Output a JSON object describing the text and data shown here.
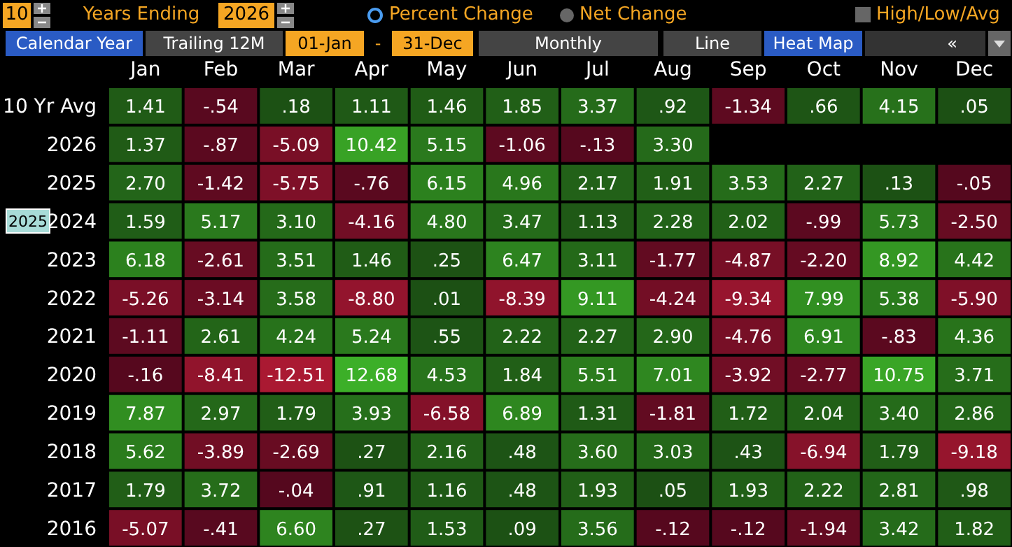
{
  "chart_data": {
    "type": "heatmap",
    "categories": [
      "Jan",
      "Feb",
      "Mar",
      "Apr",
      "May",
      "Jun",
      "Jul",
      "Aug",
      "Sep",
      "Oct",
      "Nov",
      "Dec"
    ],
    "y_categories": [
      "10 Yr Avg",
      "2026",
      "2025",
      "2024",
      "2023",
      "2022",
      "2021",
      "2020",
      "2019",
      "2018",
      "2017",
      "2016"
    ],
    "cells": [
      [
        1.41,
        -0.54,
        0.18,
        1.11,
        1.46,
        1.85,
        3.37,
        0.92,
        -1.34,
        0.66,
        4.15,
        0.05
      ],
      [
        1.37,
        -0.87,
        -5.09,
        10.42,
        5.15,
        -1.06,
        -0.13,
        3.3,
        null,
        null,
        null,
        null
      ],
      [
        2.7,
        -1.42,
        -5.75,
        -0.76,
        6.15,
        4.96,
        2.17,
        1.91,
        3.53,
        2.27,
        0.13,
        -0.05
      ],
      [
        1.59,
        5.17,
        3.1,
        -4.16,
        4.8,
        3.47,
        1.13,
        2.28,
        2.02,
        -0.99,
        5.73,
        -2.5
      ],
      [
        6.18,
        -2.61,
        3.51,
        1.46,
        0.25,
        6.47,
        3.11,
        -1.77,
        -4.87,
        -2.2,
        8.92,
        4.42
      ],
      [
        -5.26,
        -3.14,
        3.58,
        -8.8,
        0.01,
        -8.39,
        9.11,
        -4.24,
        -9.34,
        7.99,
        5.38,
        -5.9
      ],
      [
        -1.11,
        2.61,
        4.24,
        5.24,
        0.55,
        2.22,
        2.27,
        2.9,
        -4.76,
        6.91,
        -0.83,
        4.36
      ],
      [
        -0.16,
        -8.41,
        -12.51,
        12.68,
        4.53,
        1.84,
        5.51,
        7.01,
        -3.92,
        -2.77,
        10.75,
        3.71
      ],
      [
        7.87,
        2.97,
        1.79,
        3.93,
        -6.58,
        6.89,
        1.31,
        -1.81,
        1.72,
        2.04,
        3.4,
        2.86
      ],
      [
        5.62,
        -3.89,
        -2.69,
        0.27,
        2.16,
        0.48,
        3.6,
        3.03,
        0.43,
        -6.94,
        1.79,
        -9.18
      ],
      [
        1.79,
        3.72,
        -0.04,
        0.91,
        1.16,
        0.48,
        1.93,
        0.05,
        1.93,
        2.22,
        2.81,
        0.98
      ],
      [
        -5.07,
        -0.41,
        6.6,
        0.27,
        1.53,
        0.09,
        3.56,
        -0.12,
        -0.12,
        -1.94,
        3.42,
        1.82
      ]
    ],
    "cell_labels": [
      [
        "1.41",
        "-.54",
        ".18",
        "1.11",
        "1.46",
        "1.85",
        "3.37",
        ".92",
        "-1.34",
        ".66",
        "4.15",
        ".05"
      ],
      [
        "1.37",
        "-.87",
        "-5.09",
        "10.42",
        "5.15",
        "-1.06",
        "-.13",
        "3.30",
        null,
        null,
        null,
        null
      ],
      [
        "2.70",
        "-1.42",
        "-5.75",
        "-.76",
        "6.15",
        "4.96",
        "2.17",
        "1.91",
        "3.53",
        "2.27",
        ".13",
        "-.05"
      ],
      [
        "1.59",
        "5.17",
        "3.10",
        "-4.16",
        "4.80",
        "3.47",
        "1.13",
        "2.28",
        "2.02",
        "-.99",
        "5.73",
        "-2.50"
      ],
      [
        "6.18",
        "-2.61",
        "3.51",
        "1.46",
        ".25",
        "6.47",
        "3.11",
        "-1.77",
        "-4.87",
        "-2.20",
        "8.92",
        "4.42"
      ],
      [
        "-5.26",
        "-3.14",
        "3.58",
        "-8.80",
        ".01",
        "-8.39",
        "9.11",
        "-4.24",
        "-9.34",
        "7.99",
        "5.38",
        "-5.90"
      ],
      [
        "-1.11",
        "2.61",
        "4.24",
        "5.24",
        ".55",
        "2.22",
        "2.27",
        "2.90",
        "-4.76",
        "6.91",
        "-.83",
        "4.36"
      ],
      [
        "-.16",
        "-8.41",
        "-12.51",
        "12.68",
        "4.53",
        "1.84",
        "5.51",
        "7.01",
        "-3.92",
        "-2.77",
        "10.75",
        "3.71"
      ],
      [
        "7.87",
        "2.97",
        "1.79",
        "3.93",
        "-6.58",
        "6.89",
        "1.31",
        "-1.81",
        "1.72",
        "2.04",
        "3.40",
        "2.86"
      ],
      [
        "5.62",
        "-3.89",
        "-2.69",
        ".27",
        "2.16",
        ".48",
        "3.60",
        "3.03",
        ".43",
        "-6.94",
        "1.79",
        "-9.18"
      ],
      [
        "1.79",
        "3.72",
        "-.04",
        ".91",
        "1.16",
        ".48",
        "1.93",
        ".05",
        "1.93",
        "2.22",
        "2.81",
        ".98"
      ],
      [
        "-5.07",
        "-.41",
        "6.60",
        ".27",
        "1.53",
        ".09",
        "3.56",
        "-.12",
        "-.12",
        "-1.94",
        "3.42",
        "1.82"
      ]
    ],
    "annotations": [
      "10",
      "Years Ending",
      "2026",
      "Percent Change",
      "Net Change",
      "High/Low/Avg",
      "Calendar Year",
      "Trailing 12M",
      "01-Jan",
      "-",
      "31-Dec",
      "Monthly",
      "Line",
      "Heat Map",
      "«",
      "2025"
    ]
  }
}
